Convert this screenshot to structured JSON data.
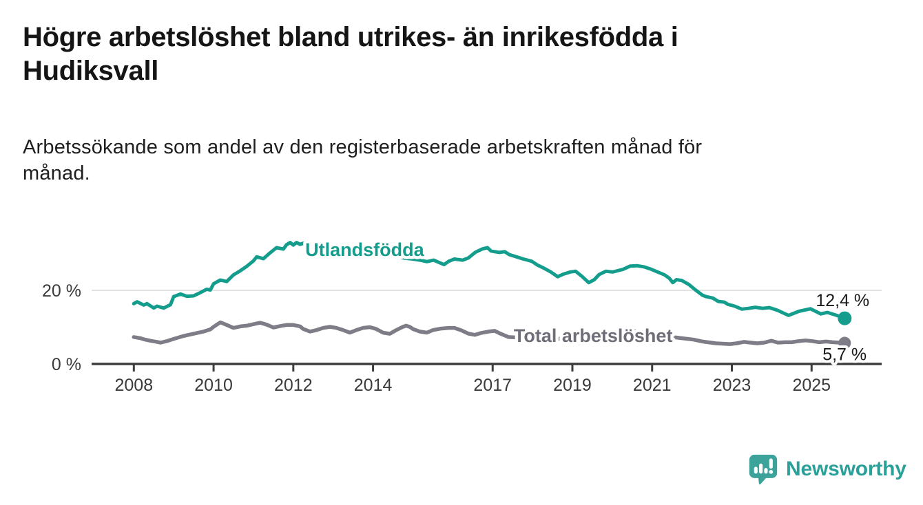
{
  "header": {
    "title": "Högre arbetslöshet bland utrikes- än inrikesfödda i Hudiksvall",
    "title_lines": [
      "Högre arbetslöshet bland utrikes- än inrikesfödda i",
      "Hudiksvall"
    ],
    "subtitle": "Arbetssökande som andel av den registerbaserade arbetskraften månad för månad.",
    "subtitle_lines": [
      "Arbetssökande som andel av den registerbaserade arbetskraften månad för",
      "månad."
    ]
  },
  "footer": {
    "brand": "Newsworthy",
    "brand_color": "#2ba099",
    "logo_icon": "speech-bubble-bar-chart"
  },
  "chart_data": {
    "type": "line",
    "title": "Högre arbetslöshet bland utrikes- än inrikesfödda i Hudiksvall",
    "subtitle": "Arbetssökande som andel av den registerbaserade arbetskraften månad för månad.",
    "x_unit": "year (monthly observations)",
    "y_unit": "percent",
    "xlim": [
      2007.0,
      2026.7
    ],
    "ylim": [
      0,
      36.5
    ],
    "grid": "single horizontal gridline at 20 %",
    "legend_position": "inline labels on lines",
    "x_axis": {
      "ticks": [
        {
          "value": 2008,
          "label": "2008"
        },
        {
          "value": 2010,
          "label": "2010"
        },
        {
          "value": 2012,
          "label": "2012"
        },
        {
          "value": 2014,
          "label": "2014"
        },
        {
          "value": 2017,
          "label": "2017"
        },
        {
          "value": 2019,
          "label": "2019"
        },
        {
          "value": 2021,
          "label": "2021"
        },
        {
          "value": 2023,
          "label": "2023"
        },
        {
          "value": 2025,
          "label": "2025"
        }
      ]
    },
    "y_axis": {
      "gridlines": [
        20
      ],
      "labels": [
        {
          "value": 20,
          "label": "20 %"
        },
        {
          "value": 0,
          "label": "0 %"
        }
      ]
    },
    "series": [
      {
        "name": "Total arbetslöshet",
        "color": "#7e7c86",
        "label_color": "#6f6d78",
        "line_width": 5.5,
        "dot_radius": 9,
        "name_label": {
          "x": 2017.53,
          "y": 5.95,
          "anchor": "start"
        },
        "end_value": 5.7,
        "end_label": {
          "text": "5,7 %",
          "x": 2026.38,
          "y": 1.05,
          "anchor": "end"
        },
        "points": [
          [
            2008.0,
            7.3
          ],
          [
            2008.17,
            7.0
          ],
          [
            2008.25,
            6.7
          ],
          [
            2008.42,
            6.3
          ],
          [
            2008.58,
            6.0
          ],
          [
            2008.67,
            5.8
          ],
          [
            2008.83,
            6.2
          ],
          [
            2009.0,
            6.8
          ],
          [
            2009.25,
            7.6
          ],
          [
            2009.5,
            8.2
          ],
          [
            2009.75,
            8.8
          ],
          [
            2009.92,
            9.4
          ],
          [
            2010.0,
            10.1
          ],
          [
            2010.17,
            11.3
          ],
          [
            2010.33,
            10.6
          ],
          [
            2010.5,
            9.8
          ],
          [
            2010.67,
            10.2
          ],
          [
            2010.83,
            10.4
          ],
          [
            2011.0,
            10.8
          ],
          [
            2011.17,
            11.2
          ],
          [
            2011.33,
            10.7
          ],
          [
            2011.5,
            9.9
          ],
          [
            2011.67,
            10.3
          ],
          [
            2011.83,
            10.6
          ],
          [
            2012.0,
            10.6
          ],
          [
            2012.17,
            10.2
          ],
          [
            2012.25,
            9.5
          ],
          [
            2012.42,
            8.8
          ],
          [
            2012.58,
            9.2
          ],
          [
            2012.75,
            9.8
          ],
          [
            2012.92,
            10.1
          ],
          [
            2013.08,
            9.8
          ],
          [
            2013.25,
            9.2
          ],
          [
            2013.42,
            8.5
          ],
          [
            2013.58,
            9.2
          ],
          [
            2013.75,
            9.8
          ],
          [
            2013.92,
            10.0
          ],
          [
            2014.08,
            9.5
          ],
          [
            2014.25,
            8.5
          ],
          [
            2014.42,
            8.2
          ],
          [
            2014.58,
            9.2
          ],
          [
            2014.75,
            10.1
          ],
          [
            2014.83,
            10.4
          ],
          [
            2014.92,
            10.1
          ],
          [
            2015.0,
            9.5
          ],
          [
            2015.17,
            8.8
          ],
          [
            2015.35,
            8.5
          ],
          [
            2015.5,
            9.2
          ],
          [
            2015.7,
            9.6
          ],
          [
            2015.9,
            9.8
          ],
          [
            2016.04,
            9.8
          ],
          [
            2016.2,
            9.2
          ],
          [
            2016.4,
            8.2
          ],
          [
            2016.55,
            7.9
          ],
          [
            2016.7,
            8.4
          ],
          [
            2016.9,
            8.8
          ],
          [
            2017.05,
            9.0
          ],
          [
            2017.2,
            8.2
          ],
          [
            2017.4,
            7.3
          ],
          [
            2017.6,
            7.2
          ],
          [
            2017.75,
            7.5
          ],
          [
            2017.9,
            7.8
          ],
          [
            2018.05,
            7.9
          ],
          [
            2018.2,
            7.5
          ],
          [
            2018.4,
            6.9
          ],
          [
            2018.6,
            6.7
          ],
          [
            2018.75,
            7.0
          ],
          [
            2018.9,
            7.2
          ],
          [
            2019.05,
            7.3
          ],
          [
            2019.2,
            7.0
          ],
          [
            2019.4,
            6.6
          ],
          [
            2019.6,
            6.8
          ],
          [
            2019.75,
            7.0
          ],
          [
            2019.9,
            7.2
          ],
          [
            2020.05,
            7.4
          ],
          [
            2020.2,
            7.9
          ],
          [
            2020.4,
            8.6
          ],
          [
            2020.55,
            8.9
          ],
          [
            2020.7,
            8.7
          ],
          [
            2020.9,
            8.4
          ],
          [
            2021.05,
            8.3
          ],
          [
            2021.2,
            8.0
          ],
          [
            2021.4,
            7.5
          ],
          [
            2021.6,
            7.2
          ],
          [
            2021.75,
            7.0
          ],
          [
            2021.9,
            6.8
          ],
          [
            2022.05,
            6.6
          ],
          [
            2022.26,
            6.1
          ],
          [
            2022.6,
            5.6
          ],
          [
            2022.95,
            5.4
          ],
          [
            2023.12,
            5.6
          ],
          [
            2023.3,
            6.0
          ],
          [
            2023.47,
            5.8
          ],
          [
            2023.64,
            5.6
          ],
          [
            2023.81,
            5.8
          ],
          [
            2023.99,
            6.3
          ],
          [
            2024.16,
            5.8
          ],
          [
            2024.33,
            5.9
          ],
          [
            2024.5,
            5.9
          ],
          [
            2024.68,
            6.2
          ],
          [
            2024.85,
            6.4
          ],
          [
            2025.02,
            6.2
          ],
          [
            2025.19,
            5.9
          ],
          [
            2025.36,
            6.1
          ],
          [
            2025.53,
            5.9
          ],
          [
            2025.7,
            5.8
          ],
          [
            2025.83,
            5.7
          ]
        ]
      },
      {
        "name": "Utlandsfödda",
        "color": "#149d8c",
        "label_color": "#149d8c",
        "line_width": 5,
        "dot_radius": 10,
        "name_label": {
          "x": 2012.3,
          "y": 29.3,
          "anchor": "start"
        },
        "end_value": 12.4,
        "end_label": {
          "text": "12,4 %",
          "x": 2026.45,
          "y": 15.7,
          "anchor": "end"
        },
        "points": [
          [
            2008.0,
            16.4
          ],
          [
            2008.08,
            16.9
          ],
          [
            2008.25,
            16.0
          ],
          [
            2008.33,
            16.4
          ],
          [
            2008.5,
            15.2
          ],
          [
            2008.58,
            15.7
          ],
          [
            2008.75,
            15.2
          ],
          [
            2008.92,
            16.1
          ],
          [
            2009.0,
            18.3
          ],
          [
            2009.17,
            19.0
          ],
          [
            2009.33,
            18.4
          ],
          [
            2009.5,
            18.5
          ],
          [
            2009.67,
            19.4
          ],
          [
            2009.83,
            20.3
          ],
          [
            2009.92,
            20.1
          ],
          [
            2010.0,
            21.8
          ],
          [
            2010.17,
            22.8
          ],
          [
            2010.33,
            22.4
          ],
          [
            2010.5,
            24.2
          ],
          [
            2010.67,
            25.3
          ],
          [
            2010.83,
            26.5
          ],
          [
            2011.0,
            28.0
          ],
          [
            2011.08,
            29.1
          ],
          [
            2011.25,
            28.6
          ],
          [
            2011.42,
            30.2
          ],
          [
            2011.58,
            31.6
          ],
          [
            2011.75,
            31.2
          ],
          [
            2011.83,
            32.4
          ],
          [
            2011.92,
            33.0
          ],
          [
            2012.0,
            32.3
          ],
          [
            2012.08,
            33.0
          ],
          [
            2012.17,
            32.5
          ],
          [
            2012.25,
            32.8
          ],
          [
            2012.33,
            31.9
          ],
          [
            2012.5,
            31.4
          ],
          [
            2012.67,
            31.9
          ],
          [
            2012.83,
            31.3
          ],
          [
            2013.0,
            31.5
          ],
          [
            2013.17,
            31.0
          ],
          [
            2013.33,
            30.5
          ],
          [
            2013.5,
            30.9
          ],
          [
            2013.67,
            30.3
          ],
          [
            2013.83,
            29.9
          ],
          [
            2014.0,
            30.2
          ],
          [
            2014.17,
            29.7
          ],
          [
            2014.33,
            29.3
          ],
          [
            2014.5,
            29.7
          ],
          [
            2014.67,
            29.0
          ],
          [
            2014.83,
            28.7
          ],
          [
            2015.0,
            28.5
          ],
          [
            2015.18,
            28.2
          ],
          [
            2015.35,
            27.8
          ],
          [
            2015.52,
            28.2
          ],
          [
            2015.78,
            27.0
          ],
          [
            2015.9,
            27.9
          ],
          [
            2016.04,
            28.5
          ],
          [
            2016.25,
            28.2
          ],
          [
            2016.39,
            28.8
          ],
          [
            2016.56,
            30.3
          ],
          [
            2016.73,
            31.2
          ],
          [
            2016.87,
            31.6
          ],
          [
            2016.96,
            30.7
          ],
          [
            2017.05,
            30.5
          ],
          [
            2017.17,
            30.3
          ],
          [
            2017.3,
            30.5
          ],
          [
            2017.42,
            29.7
          ],
          [
            2017.6,
            29.1
          ],
          [
            2017.77,
            28.5
          ],
          [
            2017.98,
            27.9
          ],
          [
            2018.12,
            26.9
          ],
          [
            2018.29,
            26.0
          ],
          [
            2018.46,
            25.0
          ],
          [
            2018.63,
            23.7
          ],
          [
            2018.77,
            24.4
          ],
          [
            2018.95,
            25.0
          ],
          [
            2019.08,
            25.2
          ],
          [
            2019.24,
            23.8
          ],
          [
            2019.41,
            22.1
          ],
          [
            2019.55,
            22.9
          ],
          [
            2019.67,
            24.3
          ],
          [
            2019.84,
            25.2
          ],
          [
            2020.01,
            25.0
          ],
          [
            2020.27,
            25.7
          ],
          [
            2020.45,
            26.6
          ],
          [
            2020.62,
            26.7
          ],
          [
            2020.79,
            26.4
          ],
          [
            2020.96,
            25.8
          ],
          [
            2021.14,
            25.0
          ],
          [
            2021.31,
            24.2
          ],
          [
            2021.43,
            23.3
          ],
          [
            2021.52,
            22.1
          ],
          [
            2021.61,
            22.9
          ],
          [
            2021.74,
            22.7
          ],
          [
            2021.92,
            21.6
          ],
          [
            2022.09,
            20.1
          ],
          [
            2022.26,
            18.7
          ],
          [
            2022.35,
            18.3
          ],
          [
            2022.52,
            17.9
          ],
          [
            2022.66,
            17.0
          ],
          [
            2022.81,
            16.8
          ],
          [
            2022.9,
            16.2
          ],
          [
            2023.07,
            15.7
          ],
          [
            2023.25,
            14.9
          ],
          [
            2023.42,
            15.1
          ],
          [
            2023.59,
            15.4
          ],
          [
            2023.77,
            15.1
          ],
          [
            2023.94,
            15.3
          ],
          [
            2024.08,
            14.8
          ],
          [
            2024.16,
            14.5
          ],
          [
            2024.42,
            13.2
          ],
          [
            2024.68,
            14.3
          ],
          [
            2024.97,
            15.0
          ],
          [
            2025.23,
            13.6
          ],
          [
            2025.4,
            14.0
          ],
          [
            2025.63,
            13.2
          ],
          [
            2025.83,
            12.4
          ]
        ]
      }
    ],
    "colors": {
      "utlandsfodda": "#149d8c",
      "total": "#7e7c86",
      "gridline": "#e3e3e3",
      "axis": "#3d3d3d",
      "text": "#3b3b3b"
    }
  }
}
